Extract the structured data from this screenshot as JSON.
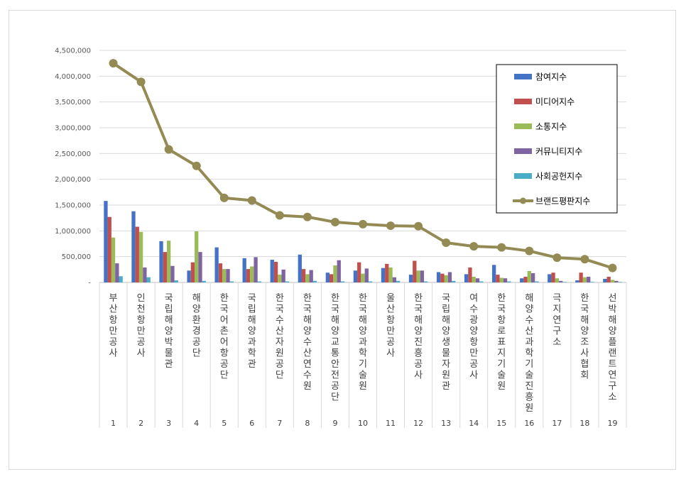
{
  "chart_data": {
    "type": "bar",
    "title": "",
    "xlabel": "",
    "ylabel": "",
    "ylim": [
      0,
      4500000
    ],
    "yticks": [
      "-",
      "500,000",
      "1,000,000",
      "1,500,000",
      "2,000,000",
      "2,500,000",
      "3,000,000",
      "3,500,000",
      "4,000,000",
      "4,500,000"
    ],
    "grid": true,
    "legend_position": "top-right",
    "categories": [
      "부산항만공사",
      "인천항만공사",
      "국립해양박물관",
      "해양환경공단",
      "한국어촌어항공단",
      "국립해양과학관",
      "한국수산자원공단",
      "한국해양수산연수원",
      "한국해양교통안전공단",
      "한국해양과학기술원",
      "울산항만공사",
      "한국해양진흥공사",
      "국립해양생물자원관",
      "여수광양항만공사",
      "한국항로표지기술원",
      "해양수산과학기술진흥원",
      "극지연구소",
      "한국해양조사협회",
      "선박해양플랜트연구소"
    ],
    "ranks": [
      "1",
      "2",
      "3",
      "4",
      "5",
      "6",
      "7",
      "8",
      "9",
      "10",
      "11",
      "12",
      "13",
      "14",
      "15",
      "16",
      "17",
      "18",
      "19"
    ],
    "series": [
      {
        "name": "참여지수",
        "kind": "bar",
        "color": "#4472c4",
        "values": [
          1580000,
          1380000,
          800000,
          230000,
          680000,
          470000,
          440000,
          540000,
          190000,
          230000,
          280000,
          150000,
          200000,
          160000,
          340000,
          80000,
          160000,
          40000,
          70000
        ]
      },
      {
        "name": "미디어지수",
        "kind": "bar",
        "color": "#c0504d",
        "values": [
          1270000,
          1080000,
          590000,
          390000,
          370000,
          260000,
          400000,
          260000,
          160000,
          390000,
          360000,
          420000,
          170000,
          290000,
          150000,
          110000,
          190000,
          190000,
          110000
        ]
      },
      {
        "name": "소통지수",
        "kind": "bar",
        "color": "#9bbb59",
        "values": [
          870000,
          980000,
          810000,
          990000,
          260000,
          310000,
          150000,
          160000,
          330000,
          170000,
          290000,
          230000,
          140000,
          110000,
          90000,
          220000,
          80000,
          100000,
          50000
        ]
      },
      {
        "name": "커뮤니티지수",
        "kind": "bar",
        "color": "#8064a2",
        "values": [
          370000,
          290000,
          320000,
          590000,
          260000,
          490000,
          250000,
          240000,
          430000,
          270000,
          100000,
          230000,
          200000,
          80000,
          80000,
          180000,
          30000,
          110000,
          30000
        ]
      },
      {
        "name": "사회공헌지수",
        "kind": "bar",
        "color": "#4bacc6",
        "values": [
          120000,
          100000,
          40000,
          30000,
          20000,
          20000,
          20000,
          30000,
          20000,
          20000,
          30000,
          20000,
          30000,
          20000,
          20000,
          20000,
          10000,
          10000,
          10000
        ]
      },
      {
        "name": "브랜드평판지수",
        "kind": "line",
        "color": "#948a54",
        "values": [
          4250000,
          3890000,
          2580000,
          2260000,
          1640000,
          1590000,
          1300000,
          1270000,
          1170000,
          1130000,
          1100000,
          1090000,
          770000,
          700000,
          680000,
          610000,
          480000,
          450000,
          280000
        ]
      }
    ]
  }
}
